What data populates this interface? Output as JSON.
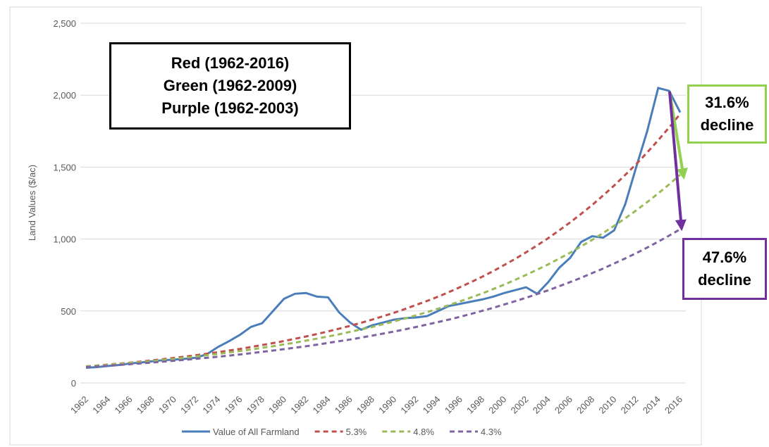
{
  "chart_data": {
    "type": "line",
    "y_label": "Land Values ($/ac)",
    "categories": [
      "1962",
      null,
      "1964",
      null,
      "1966",
      null,
      "1968",
      null,
      "1970",
      null,
      "1972",
      null,
      "1974",
      null,
      "1976",
      null,
      "1978",
      null,
      "1980",
      null,
      "1982",
      null,
      "1984",
      null,
      "1986",
      null,
      "1988",
      null,
      "1990",
      null,
      "1992",
      null,
      "1994",
      null,
      "1996",
      null,
      "1998",
      null,
      "2000",
      null,
      "2002",
      null,
      "2004",
      null,
      "2006",
      null,
      "2008",
      null,
      "2010",
      null,
      "2012",
      null,
      "2014",
      null,
      "2016"
    ],
    "series": [
      {
        "name": "Value of All Farmland",
        "color": "#4a7ebb",
        "dash": false,
        "values": [
          105,
          110,
          118,
          125,
          135,
          142,
          150,
          158,
          162,
          168,
          175,
          200,
          250,
          290,
          335,
          390,
          415,
          500,
          585,
          620,
          625,
          600,
          595,
          490,
          420,
          370,
          400,
          420,
          440,
          450,
          455,
          465,
          500,
          535,
          550,
          565,
          580,
          600,
          625,
          645,
          665,
          620,
          700,
          800,
          870,
          980,
          1020,
          1010,
          1060,
          1240,
          1500,
          1750,
          2050,
          2030,
          1880
        ]
      },
      {
        "name": "5.3%",
        "color": "#c0504d",
        "dash": true,
        "values": [
          115,
          121,
          128,
          134,
          141,
          149,
          157,
          165,
          174,
          183,
          193,
          203,
          214,
          225,
          237,
          250,
          263,
          277,
          291,
          307,
          323,
          340,
          358,
          377,
          397,
          418,
          440,
          464,
          488,
          514,
          542,
          570,
          600,
          632,
          666,
          701,
          738,
          777,
          819,
          862,
          908,
          956,
          1006,
          1060,
          1116,
          1175,
          1237,
          1303,
          1372,
          1445,
          1521,
          1602,
          1687,
          1776,
          1870
        ]
      },
      {
        "name": "4.8%",
        "color": "#9bbb59",
        "dash": true,
        "values": [
          115,
          121,
          126,
          132,
          139,
          145,
          152,
          160,
          167,
          175,
          184,
          193,
          202,
          212,
          222,
          232,
          244,
          255,
          268,
          280,
          294,
          308,
          323,
          338,
          355,
          372,
          389,
          408,
          428,
          448,
          470,
          492,
          516,
          541,
          567,
          594,
          622,
          652,
          683,
          716,
          751,
          787,
          824,
          864,
          905,
          949,
          994,
          1042,
          1092,
          1144,
          1199,
          1257,
          1317,
          1380,
          1447
        ]
      },
      {
        "name": "4.3%",
        "color": "#8064a2",
        "dash": true,
        "values": [
          110,
          115,
          120,
          125,
          130,
          136,
          142,
          148,
          154,
          161,
          168,
          175,
          182,
          190,
          198,
          207,
          216,
          225,
          235,
          245,
          255,
          266,
          278,
          290,
          302,
          315,
          329,
          343,
          357,
          373,
          389,
          406,
          423,
          441,
          460,
          480,
          501,
          522,
          545,
          568,
          592,
          618,
          644,
          672,
          701,
          731,
          763,
          795,
          830,
          865,
          902,
          941,
          982,
          1024,
          1068
        ]
      }
    ],
    "ylim": [
      0,
      2500
    ],
    "yticks": [
      0,
      {
        "value": 500,
        "label": "500"
      },
      {
        "value": 1000,
        "label": "1,000"
      },
      {
        "value": 1500,
        "label": "1,500"
      },
      {
        "value": 2000,
        "label": "2,000"
      },
      {
        "value": 2500,
        "label": "2,500"
      }
    ],
    "grid": true,
    "legend": "bottom",
    "annotations": [
      [
        "Red (1962-2016)",
        "Green (1962-2009)",
        "Purple (1962-2003)"
      ],
      [
        "31.6%",
        "decline"
      ],
      [
        "47.6%",
        "decline"
      ]
    ]
  }
}
